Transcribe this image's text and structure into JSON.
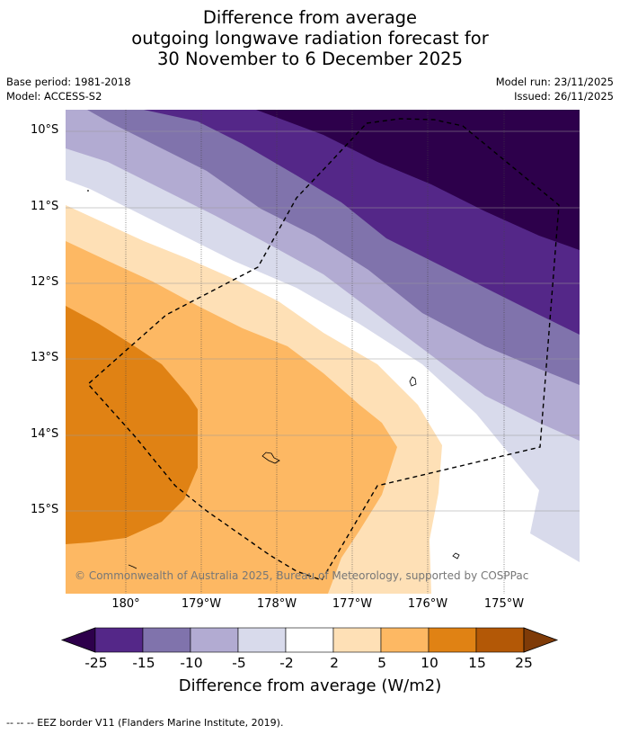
{
  "header": {
    "title_line1": "Difference from average",
    "title_line2": "outgoing longwave radiation forecast for",
    "title_line3": "30 November to 6 December 2025",
    "base_period": "Base period: 1981-2018",
    "model": "Model: ACCESS-S2",
    "model_run": "Model run: 23/11/2025",
    "issued": "Issued: 26/11/2025"
  },
  "map": {
    "lat_labels": [
      "10°S",
      "11°S",
      "12°S",
      "13°S",
      "14°S",
      "15°S"
    ],
    "lon_labels": [
      "180°",
      "179°W",
      "178°W",
      "177°W",
      "176°W",
      "175°W"
    ],
    "copyright": "© Commonwealth of Australia 2025, Bureau of Meteorology, supported by COSPPac"
  },
  "colorbar": {
    "tick_labels": [
      "-25",
      "-15",
      "-10",
      "-5",
      "-2",
      "2",
      "5",
      "10",
      "15",
      "25"
    ],
    "title": "Difference from average (W/m2)",
    "colors": [
      "#2d004b",
      "#542788",
      "#8073ac",
      "#b2abd2",
      "#d8daeb",
      "#ffffff",
      "#fee0b6",
      "#fdb863",
      "#e08214",
      "#b35806",
      "#7f3b08"
    ]
  },
  "legend": {
    "eez_text": "--  --  -- EEZ border V11 (Flanders Marine Institute, 2019)."
  }
}
